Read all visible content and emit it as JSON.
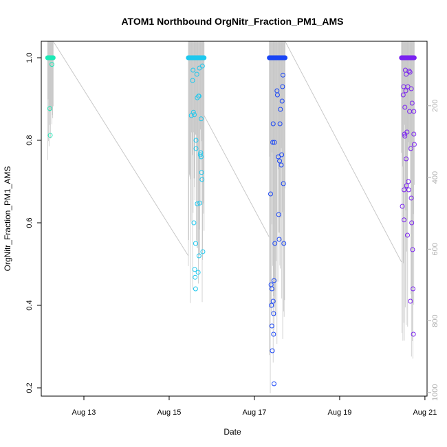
{
  "chart_data": {
    "type": "scatter",
    "title": "ATOM1 Northbound OrgNitr_Fraction_PM1_AMS",
    "xlabel": "Date",
    "ylabel": "OrgNitr_Fraction_PM1_AMS",
    "xlim_days": [
      12.0,
      21.05
    ],
    "ylim": [
      0.18,
      1.04
    ],
    "y_ticks": [
      0.2,
      0.4,
      0.6,
      0.8,
      1.0
    ],
    "y_tick_labels": [
      "0.2",
      "0.4",
      "0.6",
      "0.8",
      "1.0"
    ],
    "x_ticks": [
      13,
      15,
      17,
      19,
      21
    ],
    "x_tick_labels": [
      "Aug 13",
      "Aug 15",
      "Aug 17",
      "Aug 19",
      "Aug 21"
    ],
    "y2_ticks": [
      200,
      400,
      600,
      800,
      1000
    ],
    "y2_tick_labels": [
      "200",
      "400",
      "600",
      "800",
      "1000"
    ],
    "y2_range": [
      20,
      1010
    ],
    "colors": {
      "track": "#c8c8c8",
      "axis": "#000000",
      "secondary_axis": "#b0b0b0",
      "clusters": [
        "#1de9b6",
        "#1ec8ee",
        "#1a46f5",
        "#7a22f0"
      ]
    },
    "clusters": [
      {
        "day_start": 12.15,
        "day_end": 12.28,
        "points": [
          {
            "t": 12.2,
            "v": 0.877
          },
          {
            "t": 12.21,
            "v": 0.812
          },
          {
            "t": 12.25,
            "v": 0.984
          }
        ]
      },
      {
        "day_start": 15.45,
        "day_end": 15.82,
        "points": [
          {
            "t": 15.52,
            "v": 0.86
          },
          {
            "t": 15.55,
            "v": 0.945
          },
          {
            "t": 15.56,
            "v": 0.97
          },
          {
            "t": 15.57,
            "v": 0.868
          },
          {
            "t": 15.58,
            "v": 0.6
          },
          {
            "t": 15.59,
            "v": 0.862
          },
          {
            "t": 15.6,
            "v": 0.487
          },
          {
            "t": 15.61,
            "v": 0.468
          },
          {
            "t": 15.62,
            "v": 0.44
          },
          {
            "t": 15.62,
            "v": 0.55
          },
          {
            "t": 15.63,
            "v": 0.8
          },
          {
            "t": 15.63,
            "v": 0.78
          },
          {
            "t": 15.65,
            "v": 0.96
          },
          {
            "t": 15.66,
            "v": 0.646
          },
          {
            "t": 15.66,
            "v": 0.903
          },
          {
            "t": 15.68,
            "v": 0.48
          },
          {
            "t": 15.69,
            "v": 0.907
          },
          {
            "t": 15.7,
            "v": 0.907
          },
          {
            "t": 15.7,
            "v": 0.52
          },
          {
            "t": 15.71,
            "v": 0.975
          },
          {
            "t": 15.72,
            "v": 0.648
          },
          {
            "t": 15.73,
            "v": 0.765
          },
          {
            "t": 15.74,
            "v": 0.77
          },
          {
            "t": 15.75,
            "v": 0.852
          },
          {
            "t": 15.75,
            "v": 0.76
          },
          {
            "t": 15.76,
            "v": 0.722
          },
          {
            "t": 15.77,
            "v": 0.705
          },
          {
            "t": 15.78,
            "v": 0.98
          },
          {
            "t": 15.79,
            "v": 0.53
          }
        ]
      },
      {
        "day_start": 17.35,
        "day_end": 17.72,
        "points": [
          {
            "t": 17.38,
            "v": 0.67
          },
          {
            "t": 17.39,
            "v": 0.45
          },
          {
            "t": 17.4,
            "v": 0.4
          },
          {
            "t": 17.41,
            "v": 0.35
          },
          {
            "t": 17.41,
            "v": 0.44
          },
          {
            "t": 17.42,
            "v": 0.29
          },
          {
            "t": 17.43,
            "v": 0.795
          },
          {
            "t": 17.44,
            "v": 0.84
          },
          {
            "t": 17.44,
            "v": 0.41
          },
          {
            "t": 17.45,
            "v": 0.38
          },
          {
            "t": 17.45,
            "v": 0.33
          },
          {
            "t": 17.46,
            "v": 0.21
          },
          {
            "t": 17.46,
            "v": 0.46
          },
          {
            "t": 17.47,
            "v": 0.795
          },
          {
            "t": 17.48,
            "v": 0.55
          },
          {
            "t": 17.53,
            "v": 0.92
          },
          {
            "t": 17.54,
            "v": 0.91
          },
          {
            "t": 17.56,
            "v": 0.76
          },
          {
            "t": 17.57,
            "v": 0.62
          },
          {
            "t": 17.58,
            "v": 0.56
          },
          {
            "t": 17.59,
            "v": 0.75
          },
          {
            "t": 17.6,
            "v": 0.84
          },
          {
            "t": 17.61,
            "v": 0.875
          },
          {
            "t": 17.63,
            "v": 0.74
          },
          {
            "t": 17.64,
            "v": 0.765
          },
          {
            "t": 17.65,
            "v": 0.895
          },
          {
            "t": 17.66,
            "v": 0.93
          },
          {
            "t": 17.67,
            "v": 0.958
          },
          {
            "t": 17.68,
            "v": 0.695
          },
          {
            "t": 17.69,
            "v": 0.55
          }
        ]
      },
      {
        "day_start": 20.45,
        "day_end": 20.75,
        "points": [
          {
            "t": 20.47,
            "v": 0.64
          },
          {
            "t": 20.49,
            "v": 0.91
          },
          {
            "t": 20.5,
            "v": 0.93
          },
          {
            "t": 20.51,
            "v": 0.607
          },
          {
            "t": 20.51,
            "v": 0.68
          },
          {
            "t": 20.52,
            "v": 0.815
          },
          {
            "t": 20.53,
            "v": 0.88
          },
          {
            "t": 20.53,
            "v": 0.81
          },
          {
            "t": 20.54,
            "v": 0.97
          },
          {
            "t": 20.55,
            "v": 0.92
          },
          {
            "t": 20.56,
            "v": 0.96
          },
          {
            "t": 20.56,
            "v": 0.755
          },
          {
            "t": 20.57,
            "v": 0.69
          },
          {
            "t": 20.58,
            "v": 0.82
          },
          {
            "t": 20.59,
            "v": 0.57
          },
          {
            "t": 20.6,
            "v": 0.93
          },
          {
            "t": 20.61,
            "v": 0.7
          },
          {
            "t": 20.62,
            "v": 0.68
          },
          {
            "t": 20.63,
            "v": 0.968
          },
          {
            "t": 20.64,
            "v": 0.87
          },
          {
            "t": 20.65,
            "v": 0.965
          },
          {
            "t": 20.66,
            "v": 0.41
          },
          {
            "t": 20.67,
            "v": 0.78
          },
          {
            "t": 20.68,
            "v": 0.66
          },
          {
            "t": 20.68,
            "v": 0.925
          },
          {
            "t": 20.69,
            "v": 0.6
          },
          {
            "t": 20.7,
            "v": 0.89
          },
          {
            "t": 20.71,
            "v": 0.535
          },
          {
            "t": 20.72,
            "v": 0.44
          },
          {
            "t": 20.73,
            "v": 0.33
          },
          {
            "t": 20.74,
            "v": 0.815
          },
          {
            "t": 20.74,
            "v": 0.87
          },
          {
            "t": 20.75,
            "v": 0.79
          }
        ]
      }
    ],
    "track_segments": [
      {
        "from": [
          12.28,
          1.04
        ],
        "to": [
          15.45,
          0.52
        ]
      },
      {
        "from": [
          15.82,
          0.86
        ],
        "to": [
          17.35,
          0.565
        ]
      },
      {
        "from": [
          17.72,
          1.04
        ],
        "to": [
          20.45,
          0.505
        ]
      }
    ]
  }
}
